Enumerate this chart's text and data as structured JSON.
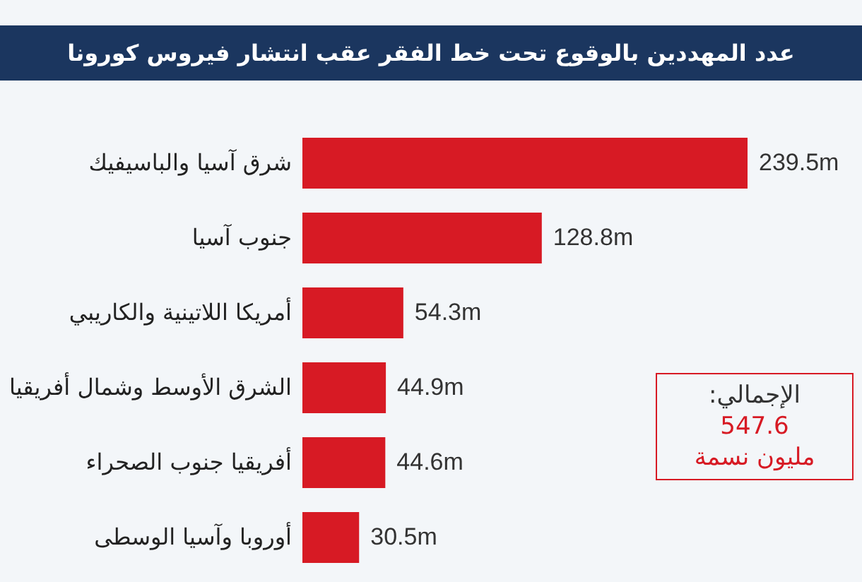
{
  "chart_data": {
    "type": "bar",
    "orientation": "horizontal",
    "title": "عدد المهددين بالوقوع تحت خط الفقر عقب انتشار فيروس كورونا",
    "categories": [
      "شرق آسيا والباسيفيك",
      "جنوب آسيا",
      "أمريكا اللاتينية والكاريبي",
      "الشرق الأوسط وشمال أفريقيا",
      "أفريقيا جنوب الصحراء",
      "أوروبا وآسيا الوسطى"
    ],
    "values": [
      239.5,
      128.8,
      54.3,
      44.9,
      44.6,
      30.5
    ],
    "value_labels": [
      "239.5m",
      "128.8m",
      "54.3m",
      "44.9m",
      "44.6m",
      "30.5m"
    ],
    "color": "#d71a24",
    "annotations": [
      "الإجمالي:",
      "547.6",
      "مليون نسمة"
    ]
  }
}
